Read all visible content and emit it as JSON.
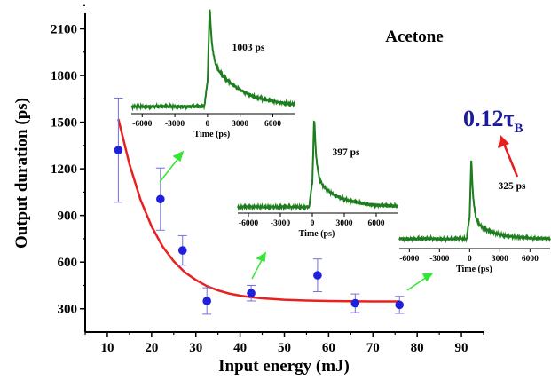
{
  "chart_data": {
    "type": "scatter",
    "title": "Acetone",
    "xlabel": "Input energy (mJ)",
    "ylabel": "Output duration (ps)",
    "xlim": [
      5,
      95
    ],
    "ylim": [
      150,
      2200
    ],
    "x_ticks": [
      10,
      20,
      30,
      40,
      50,
      60,
      70,
      80,
      90
    ],
    "y_ticks": [
      300,
      600,
      900,
      1200,
      1500,
      1800,
      2100
    ],
    "grid": false,
    "marker_color": "#1f1fdc",
    "errorbar_color": "#7070e0",
    "fit_color": "#e82020",
    "series": [
      {
        "type": "scatter",
        "x": [
          12.5,
          22,
          27,
          32.5,
          42.5,
          57.5,
          66,
          76
        ],
        "y": [
          1320,
          1005,
          675,
          350,
          400,
          515,
          335,
          325
        ],
        "yerr": [
          335,
          200,
          95,
          85,
          50,
          105,
          60,
          55
        ]
      },
      {
        "type": "line",
        "x": [
          12.5,
          15,
          17.5,
          20,
          22.5,
          25,
          27.5,
          30,
          32.5,
          35,
          37.5,
          40,
          42.5,
          45,
          50,
          55,
          60,
          65,
          70,
          76
        ],
        "y": [
          1520,
          1230,
          1000,
          830,
          700,
          605,
          535,
          485,
          445,
          418,
          398,
          384,
          374,
          367,
          358,
          353,
          350,
          348,
          347,
          347
        ]
      }
    ],
    "insets": [
      {
        "duration_label": "1003 ps",
        "x_ticks": [
          -6000,
          -3000,
          0,
          3000,
          6000
        ],
        "xlabel": "Time (ps)",
        "color": "#1e7d1e"
      },
      {
        "duration_label": "397 ps",
        "x_ticks": [
          -6000,
          -3000,
          0,
          3000,
          6000
        ],
        "xlabel": "Time (ps)",
        "color": "#1e7d1e"
      },
      {
        "duration_label": "325 ps",
        "x_ticks": [
          -6000,
          -3000,
          0,
          3000,
          6000
        ],
        "xlabel": "Time (ps)",
        "color": "#1e7d1e"
      }
    ],
    "annotation": {
      "text": "0.12τ",
      "subscript": "B",
      "arrow_color": "#e61e1e",
      "text_color": "#1a1a9c"
    }
  }
}
